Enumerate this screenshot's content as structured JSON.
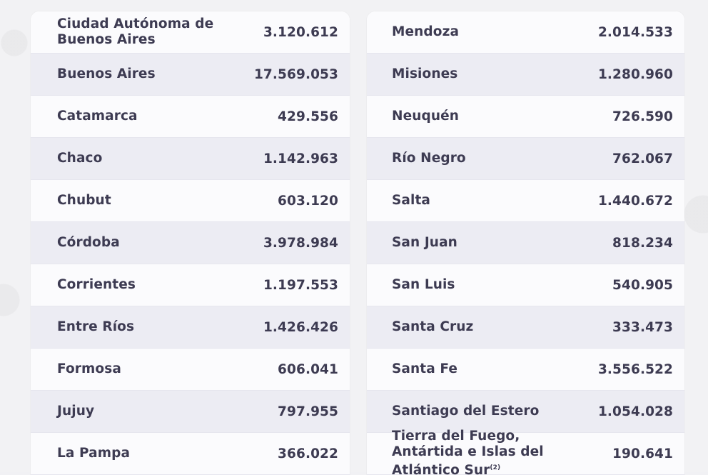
{
  "left_table": [
    {
      "name": "Ciudad Autónoma de Buenos Aires",
      "value": "3.120.612"
    },
    {
      "name": "Buenos Aires",
      "value": "17.569.053"
    },
    {
      "name": "Catamarca",
      "value": "429.556"
    },
    {
      "name": "Chaco",
      "value": "1.142.963"
    },
    {
      "name": "Chubut",
      "value": "603.120"
    },
    {
      "name": "Córdoba",
      "value": "3.978.984"
    },
    {
      "name": "Corrientes",
      "value": "1.197.553"
    },
    {
      "name": "Entre Ríos",
      "value": "1.426.426"
    },
    {
      "name": "Formosa",
      "value": "606.041"
    },
    {
      "name": "Jujuy",
      "value": "797.955"
    },
    {
      "name": "La Pampa",
      "value": "366.022"
    }
  ],
  "right_table": [
    {
      "name": "Mendoza",
      "value": "2.014.533"
    },
    {
      "name": "Misiones",
      "value": "1.280.960"
    },
    {
      "name": "Neuquén",
      "value": "726.590"
    },
    {
      "name": "Río Negro",
      "value": "762.067"
    },
    {
      "name": "Salta",
      "value": "1.440.672"
    },
    {
      "name": "San Juan",
      "value": "818.234"
    },
    {
      "name": "San Luis",
      "value": "540.905"
    },
    {
      "name": "Santa Cruz",
      "value": "333.473"
    },
    {
      "name": "Santa Fe",
      "value": "3.556.522"
    },
    {
      "name": "Santiago del Estero",
      "value": "1.054.028"
    },
    {
      "name": "Tierra del Fuego, Antártida e Islas del Atlántico Sur",
      "value": "190.641",
      "note": "(2)"
    }
  ]
}
